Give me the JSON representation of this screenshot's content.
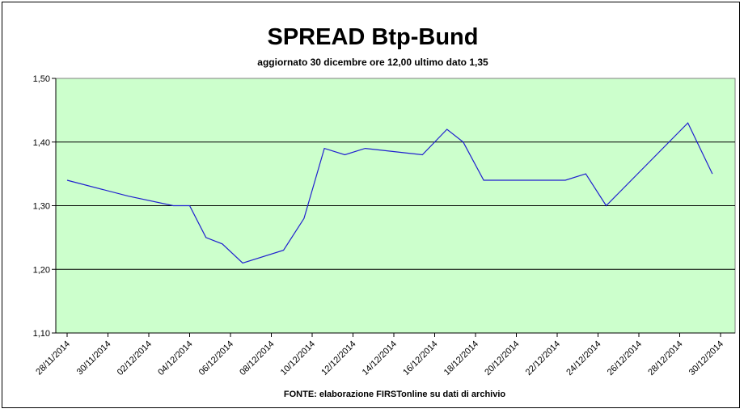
{
  "chart_data": {
    "type": "line",
    "title": "SPREAD Btp-Bund",
    "subtitle": "aggiornato 30 dicembre ore 12,00  ultimo dato  1,35",
    "source": "FONTE: elaborazione FIRSTonline su dati di archivio",
    "xlabel": "",
    "ylabel": "",
    "ylim": [
      1.1,
      1.5
    ],
    "yticks": [
      "1,10",
      "1,20",
      "1,30",
      "1,40",
      "1,50"
    ],
    "grid": true,
    "legend": "none",
    "colors": {
      "plot_bg": "#ccffcc",
      "line": "#1f1fcf",
      "grid": "#000000"
    },
    "categories": [
      "28/11/2014",
      "30/11/2014",
      "02/12/2014",
      "04/12/2014",
      "06/12/2014",
      "08/12/2014",
      "10/12/2014",
      "12/12/2014",
      "14/12/2014",
      "16/12/2014",
      "18/12/2014",
      "20/12/2014",
      "22/12/2014",
      "24/12/2014",
      "26/12/2014",
      "28/12/2014",
      "30/12/2014"
    ],
    "series": [
      {
        "x": [
          0,
          1.5,
          2.6,
          3,
          3.4,
          3.8,
          4.3,
          5.3,
          5.8,
          6.3,
          6.8,
          7.3,
          8.7,
          9.3,
          9.7,
          10.2,
          12.2,
          12.7,
          13.2,
          15.2,
          15.8
        ],
        "values": [
          1.34,
          1.315,
          1.3,
          1.3,
          1.25,
          1.24,
          1.21,
          1.23,
          1.28,
          1.39,
          1.38,
          1.39,
          1.38,
          1.42,
          1.4,
          1.34,
          1.34,
          1.35,
          1.3,
          1.43,
          1.35
        ]
      }
    ]
  }
}
